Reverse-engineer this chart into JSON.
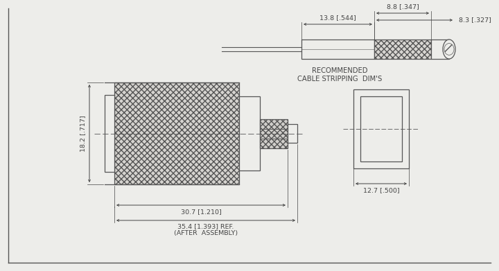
{
  "bg_color": "#ededea",
  "line_color": "#555555",
  "dim_color": "#444444",
  "title_line1": "RECOMMENDED",
  "title_line2": "CABLE STRIPPING  DIM'S",
  "dim_fontsize": 6.8,
  "title_fontsize": 7.2,
  "annotations": {
    "dim_13_8": "13.8 [.544]",
    "dim_8_8": "8.8 [.347]",
    "dim_8_3": "8.3 [.327]",
    "dim_18_2": "18.2 [.717]",
    "dim_30_7": "30.7 [1.210]",
    "dim_35_4": "35.4 [1.393] REF.",
    "dim_after": "(AFTER  ASSEMBLY)",
    "dim_12_7": "12.7 [.500]"
  }
}
